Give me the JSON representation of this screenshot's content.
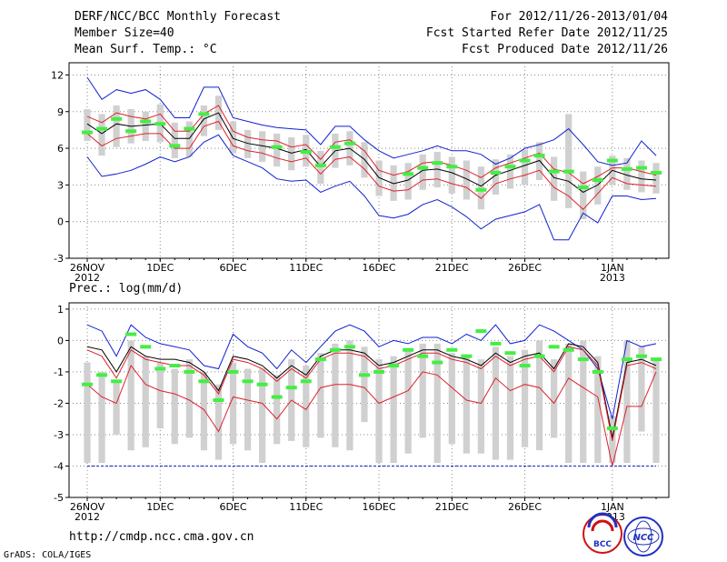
{
  "header": {
    "title": "DERF/NCC/BCC Monthly Forecast",
    "member_size": "Member Size=40",
    "variable": "Mean Surf. Temp.: °C",
    "forecast_period": "For 2012/11/26-2013/01/04",
    "refer_date": "Fcst Started Refer Date 2012/11/25",
    "produced_date": "Fcst Produced Date 2012/11/26"
  },
  "footer": {
    "url": "http://cmdp.ncc.cma.gov.cn",
    "grads_credit": "GrADS: COLA/IGES",
    "logo_bcc": "BCC",
    "logo_ncc": "NCC"
  },
  "colors": {
    "ensemble_mean": "#000000",
    "std_bounds": "#e0202c",
    "extremes": "#1020d0",
    "member_spread_bar": "#d0d0d0",
    "climatology_marker": "#44ee44"
  },
  "chart_data": [
    {
      "id": "temperature",
      "type": "line",
      "title": "Mean Surf. Temp.: °C",
      "ylim": [
        -3,
        13
      ],
      "yticks": [
        -3,
        0,
        3,
        6,
        9,
        12
      ],
      "x_tick_positions": [
        0,
        5,
        10,
        15,
        20,
        25,
        30,
        36
      ],
      "x_tick_labels": [
        "26NOV",
        "1DEC",
        "6DEC",
        "11DEC",
        "16DEC",
        "21DEC",
        "26DEC",
        "1JAN"
      ],
      "x_year_labels": [
        {
          "day": 0,
          "label": "2012"
        },
        {
          "day": 36,
          "label": "2013"
        }
      ],
      "days": 40,
      "series": [
        {
          "name": "Maximum",
          "color": "#1020d0",
          "values": [
            11.8,
            10.0,
            10.8,
            10.5,
            10.8,
            10.0,
            8.5,
            8.5,
            11.0,
            11.0,
            8.5,
            8.2,
            7.9,
            7.7,
            7.6,
            7.5,
            6.3,
            7.8,
            7.8,
            6.7,
            5.8,
            5.2,
            5.5,
            5.8,
            6.2,
            5.8,
            5.8,
            5.5,
            4.7,
            5.2,
            6.0,
            6.3,
            6.7,
            7.6,
            6.3,
            4.9,
            4.6,
            4.8,
            6.6,
            5.4
          ]
        },
        {
          "name": "Mean+Std",
          "color": "#e0202c",
          "values": [
            8.6,
            8.1,
            8.9,
            8.6,
            8.4,
            8.8,
            7.4,
            7.4,
            8.8,
            9.5,
            7.4,
            6.9,
            6.7,
            6.6,
            6.1,
            6.3,
            5.1,
            6.5,
            6.7,
            5.8,
            4.2,
            3.8,
            4.1,
            4.8,
            4.9,
            4.6,
            4.2,
            3.6,
            4.4,
            4.8,
            5.2,
            5.6,
            4.3,
            4.0,
            3.1,
            3.7,
            4.4,
            4.4,
            4.1,
            3.8
          ]
        },
        {
          "name": "Ensemble Mean",
          "color": "#000000",
          "values": [
            8.0,
            7.2,
            8.0,
            7.8,
            7.9,
            8.0,
            6.8,
            6.8,
            8.4,
            8.9,
            6.8,
            6.4,
            6.2,
            6.0,
            5.6,
            5.9,
            4.5,
            5.8,
            6.0,
            5.1,
            3.6,
            3.1,
            3.4,
            4.2,
            4.3,
            4.0,
            3.5,
            2.9,
            3.8,
            4.2,
            4.6,
            5.0,
            3.6,
            3.3,
            2.4,
            3.0,
            4.2,
            3.8,
            3.5,
            3.4
          ]
        },
        {
          "name": "Mean-Std",
          "color": "#e0202c",
          "values": [
            7.2,
            6.2,
            6.8,
            7.0,
            7.2,
            7.2,
            6.0,
            6.0,
            7.8,
            8.2,
            6.2,
            5.8,
            5.6,
            5.2,
            4.9,
            5.2,
            3.9,
            5.1,
            5.3,
            4.3,
            2.9,
            2.5,
            2.6,
            3.4,
            3.5,
            3.1,
            2.8,
            1.9,
            3.1,
            3.5,
            3.8,
            4.2,
            2.8,
            2.1,
            1.0,
            2.3,
            3.6,
            3.1,
            3.0,
            2.9
          ]
        },
        {
          "name": "Minimum",
          "color": "#1020d0",
          "values": [
            5.3,
            3.7,
            3.9,
            4.2,
            4.7,
            5.3,
            4.9,
            5.3,
            6.5,
            7.1,
            5.4,
            4.9,
            4.4,
            3.5,
            3.3,
            3.4,
            2.4,
            2.9,
            3.3,
            2.1,
            0.5,
            0.3,
            0.6,
            1.4,
            1.8,
            1.2,
            0.4,
            -0.6,
            0.2,
            0.5,
            0.8,
            1.4,
            -1.5,
            -1.5,
            0.7,
            -0.1,
            2.1,
            2.1,
            1.8,
            1.9
          ]
        }
      ],
      "member_range": {
        "low": [
          6.6,
          5.4,
          6.1,
          6.4,
          6.6,
          6.5,
          5.2,
          5.3,
          7.0,
          7.5,
          5.6,
          5.2,
          4.9,
          4.5,
          4.2,
          4.5,
          3.1,
          4.4,
          4.6,
          3.6,
          2.1,
          1.7,
          1.8,
          2.6,
          2.8,
          2.3,
          1.8,
          1.0,
          2.2,
          2.7,
          3.0,
          3.4,
          1.7,
          1.1,
          0.2,
          1.4,
          3.0,
          2.6,
          2.4,
          2.3
        ],
        "high": [
          9.2,
          8.8,
          9.5,
          9.2,
          9.0,
          9.6,
          8.1,
          8.2,
          9.5,
          10.3,
          8.2,
          7.5,
          7.4,
          7.2,
          6.9,
          7.1,
          5.8,
          7.2,
          7.4,
          6.5,
          5.0,
          4.6,
          4.8,
          5.5,
          5.7,
          5.3,
          5.0,
          4.5,
          5.1,
          5.5,
          5.9,
          6.5,
          5.3,
          8.8,
          4.1,
          4.5,
          5.4,
          5.2,
          5.0,
          4.8
        ]
      },
      "climatology": [
        7.3,
        7.6,
        8.4,
        7.4,
        8.2,
        8.0,
        6.2,
        7.6,
        8.8,
        null,
        null,
        null,
        null,
        6.1,
        null,
        5.7,
        4.6,
        6.1,
        6.4,
        null,
        null,
        null,
        3.9,
        4.4,
        4.8,
        4.5,
        null,
        2.6,
        4.0,
        4.5,
        5.0,
        5.4,
        4.1,
        4.1,
        2.8,
        3.4,
        5.0,
        4.3,
        4.4,
        4.0
      ]
    },
    {
      "id": "precipitation",
      "type": "line",
      "title": "Prec.: log(mm/d)",
      "ylim": [
        -5,
        1.2
      ],
      "yticks": [
        -5,
        -4,
        -3,
        -2,
        -1,
        0,
        1
      ],
      "x_tick_positions": [
        0,
        5,
        10,
        15,
        20,
        25,
        30,
        36
      ],
      "x_tick_labels": [
        "26NOV",
        "1DEC",
        "6DEC",
        "11DEC",
        "16DEC",
        "21DEC",
        "26DEC",
        "1JAN"
      ],
      "x_year_labels": [
        {
          "day": 0,
          "label": "2012"
        },
        {
          "day": 36,
          "label": "2013"
        }
      ],
      "days": 40,
      "series": [
        {
          "name": "Maximum",
          "color": "#1020d0",
          "values": [
            0.5,
            0.3,
            -0.5,
            0.5,
            0.1,
            -0.1,
            -0.2,
            -0.3,
            -0.8,
            -0.9,
            0.2,
            -0.2,
            -0.4,
            -0.9,
            -0.3,
            -0.7,
            -0.2,
            0.3,
            0.5,
            0.3,
            -0.2,
            0.0,
            -0.1,
            0.1,
            0.1,
            -0.1,
            0.2,
            0.0,
            0.5,
            -0.1,
            0.0,
            0.5,
            0.3,
            0.0,
            -0.3,
            -0.9,
            -2.5,
            0.0,
            -0.2,
            -0.1
          ]
        },
        {
          "name": "Mean+Std",
          "color": "#000000",
          "values": [
            -0.2,
            -0.3,
            -1.0,
            -0.2,
            -0.5,
            -0.6,
            -0.6,
            -0.7,
            -1.0,
            -1.6,
            -0.5,
            -0.6,
            -0.8,
            -1.2,
            -0.8,
            -1.1,
            -0.5,
            -0.3,
            -0.3,
            -0.4,
            -0.8,
            -0.7,
            -0.5,
            -0.3,
            -0.3,
            -0.5,
            -0.6,
            -0.8,
            -0.4,
            -0.7,
            -0.5,
            -0.4,
            -0.9,
            -0.1,
            -0.2,
            -0.7,
            -3.1,
            -0.7,
            -0.6,
            -0.8
          ]
        },
        {
          "name": "Ensemble Mean",
          "color": "#e0202c",
          "values": [
            -0.3,
            -0.5,
            -1.2,
            -0.3,
            -0.6,
            -0.7,
            -0.8,
            -0.8,
            -1.1,
            -1.7,
            -0.6,
            -0.7,
            -0.9,
            -1.3,
            -0.9,
            -1.2,
            -0.6,
            -0.4,
            -0.4,
            -0.5,
            -0.9,
            -0.8,
            -0.6,
            -0.4,
            -0.4,
            -0.6,
            -0.7,
            -0.9,
            -0.5,
            -0.8,
            -0.6,
            -0.5,
            -1.0,
            -0.2,
            -0.3,
            -0.8,
            -3.2,
            -0.8,
            -0.7,
            -0.9
          ]
        },
        {
          "name": "Minimum",
          "color": "#e0202c",
          "values": [
            -1.4,
            -1.8,
            -2.0,
            -0.8,
            -1.4,
            -1.6,
            -1.7,
            -1.9,
            -2.2,
            -2.9,
            -1.8,
            -1.9,
            -2.0,
            -2.5,
            -1.9,
            -2.2,
            -1.5,
            -1.4,
            -1.4,
            -1.5,
            -2.0,
            -1.8,
            -1.6,
            -1.0,
            -1.1,
            -1.5,
            -1.9,
            -2.0,
            -1.2,
            -1.6,
            -1.4,
            -1.5,
            -2.0,
            -1.2,
            -1.5,
            -1.8,
            -4.0,
            -2.1,
            -2.1,
            -1.0
          ]
        },
        {
          "name": "Floor",
          "color": "#1020d0",
          "style": "dashed",
          "values": [
            -4,
            -4,
            -4,
            -4,
            -4,
            -4,
            -4,
            -4,
            -4,
            -4,
            -4,
            -4,
            -4,
            -4,
            -4,
            -4,
            -4,
            -4,
            -4,
            -4,
            -4,
            -4,
            -4,
            -4,
            -4,
            -4,
            -4,
            -4,
            -4,
            -4,
            -4,
            -4,
            -4,
            -4,
            -4,
            -4,
            -4,
            -4,
            -4,
            -4
          ]
        }
      ],
      "member_range": {
        "low": [
          -3.9,
          -3.9,
          -3.0,
          -3.5,
          -3.4,
          -2.8,
          -3.3,
          -3.1,
          -3.5,
          -3.8,
          -3.3,
          -3.5,
          -3.9,
          -3.3,
          -3.2,
          -3.4,
          -3.1,
          -3.4,
          -3.5,
          -2.6,
          -3.9,
          -3.9,
          -3.6,
          -3.1,
          -3.9,
          -3.3,
          -3.6,
          -3.6,
          -3.8,
          -3.8,
          -3.4,
          -3.5,
          -3.1,
          -3.9,
          -3.9,
          -3.9,
          -3.9,
          -3.9,
          -2.9,
          -3.9
        ],
        "high": [
          -0.7,
          -1.0,
          -1.3,
          0.0,
          -0.5,
          -0.7,
          -0.9,
          -0.6,
          -1.0,
          -1.4,
          -0.7,
          -0.9,
          -0.9,
          -1.1,
          -0.6,
          -0.8,
          -0.4,
          -0.1,
          0.0,
          -0.2,
          -0.6,
          -0.5,
          -0.3,
          -0.1,
          -0.1,
          -0.4,
          -0.5,
          -0.6,
          -0.2,
          -0.5,
          -0.3,
          0.0,
          -0.6,
          -0.1,
          0.0,
          -0.5,
          -2.4,
          0.0,
          -0.2,
          -0.6
        ]
      },
      "climatology": [
        -1.4,
        -1.1,
        -1.3,
        0.2,
        -0.2,
        -0.9,
        -0.8,
        -1.0,
        -1.3,
        -1.9,
        -1.0,
        -1.3,
        -1.4,
        -1.8,
        -1.5,
        -1.3,
        -0.6,
        -0.3,
        -0.2,
        -1.1,
        -1.0,
        -0.8,
        -0.3,
        -0.5,
        -0.7,
        -0.3,
        -0.5,
        0.3,
        -0.1,
        -0.4,
        -0.8,
        -0.5,
        -0.2,
        -0.3,
        -0.6,
        -1.0,
        -2.8,
        -0.6,
        -0.5,
        -0.6
      ]
    }
  ]
}
